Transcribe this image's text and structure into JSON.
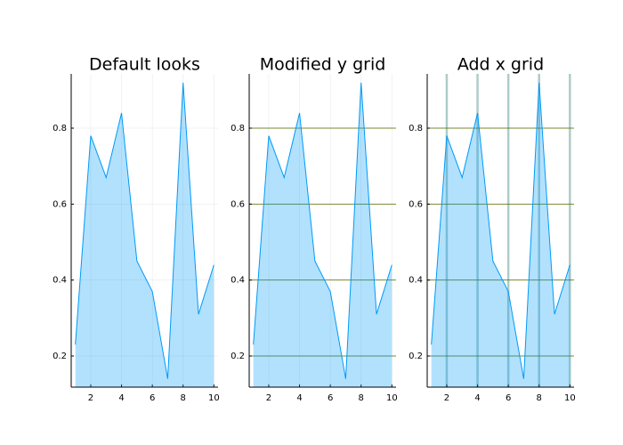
{
  "chart_data": [
    {
      "type": "area",
      "title": "Default looks",
      "x": [
        1,
        2,
        3,
        4,
        5,
        6,
        7,
        8,
        9,
        10
      ],
      "values": [
        0.23,
        0.78,
        0.67,
        0.84,
        0.45,
        0.37,
        0.14,
        0.92,
        0.31,
        0.44
      ],
      "color": "#009af9",
      "xlim": [
        0.73,
        10.27
      ],
      "ylim": [
        0.118,
        0.943
      ],
      "xticks": [
        2,
        4,
        6,
        8,
        10
      ],
      "yticks": [
        0.2,
        0.4,
        0.6,
        0.8
      ],
      "xgrid": {
        "color": "#000000",
        "opacity": 0.1,
        "width": 0.5
      },
      "ygrid": {
        "color": "#000000",
        "opacity": 0.1,
        "width": 0.5
      }
    },
    {
      "type": "area",
      "title": "Modified y grid",
      "x": [
        1,
        2,
        3,
        4,
        5,
        6,
        7,
        8,
        9,
        10
      ],
      "values": [
        0.23,
        0.78,
        0.67,
        0.84,
        0.45,
        0.37,
        0.14,
        0.92,
        0.31,
        0.44
      ],
      "color": "#009af9",
      "xlim": [
        0.73,
        10.27
      ],
      "ylim": [
        0.118,
        0.943
      ],
      "xticks": [
        2,
        4,
        6,
        8,
        10
      ],
      "yticks": [
        0.2,
        0.4,
        0.6,
        0.8
      ],
      "xgrid": {
        "color": "#000000",
        "opacity": 0.1,
        "width": 0.5
      },
      "ygrid": {
        "color": "#556b00",
        "opacity": 0.8,
        "width": 1
      }
    },
    {
      "type": "area",
      "title": "Add x grid",
      "x": [
        1,
        2,
        3,
        4,
        5,
        6,
        7,
        8,
        9,
        10
      ],
      "values": [
        0.23,
        0.78,
        0.67,
        0.84,
        0.45,
        0.37,
        0.14,
        0.92,
        0.31,
        0.44
      ],
      "color": "#009af9",
      "xlim": [
        0.73,
        10.27
      ],
      "ylim": [
        0.118,
        0.943
      ],
      "xticks": [
        2,
        4,
        6,
        8,
        10
      ],
      "yticks": [
        0.2,
        0.4,
        0.6,
        0.8
      ],
      "xgrid": {
        "color": "#4a8f8a",
        "opacity": 0.45,
        "width": 2.5
      },
      "ygrid": {
        "color": "#556b00",
        "opacity": 0.8,
        "width": 1
      }
    }
  ]
}
